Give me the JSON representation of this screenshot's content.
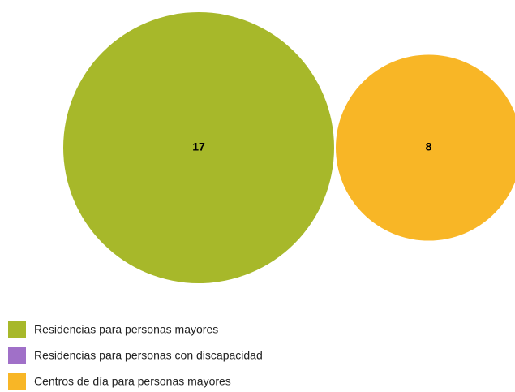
{
  "chart_data": {
    "type": "bubble",
    "categories": [
      "Residencias para personas mayores",
      "Residencias para personas con discapacidad",
      "Centros de día para personas mayores"
    ],
    "values": [
      17,
      null,
      8
    ],
    "colors": [
      "#a7b82a",
      "#a070c8",
      "#f8b626"
    ]
  }
}
